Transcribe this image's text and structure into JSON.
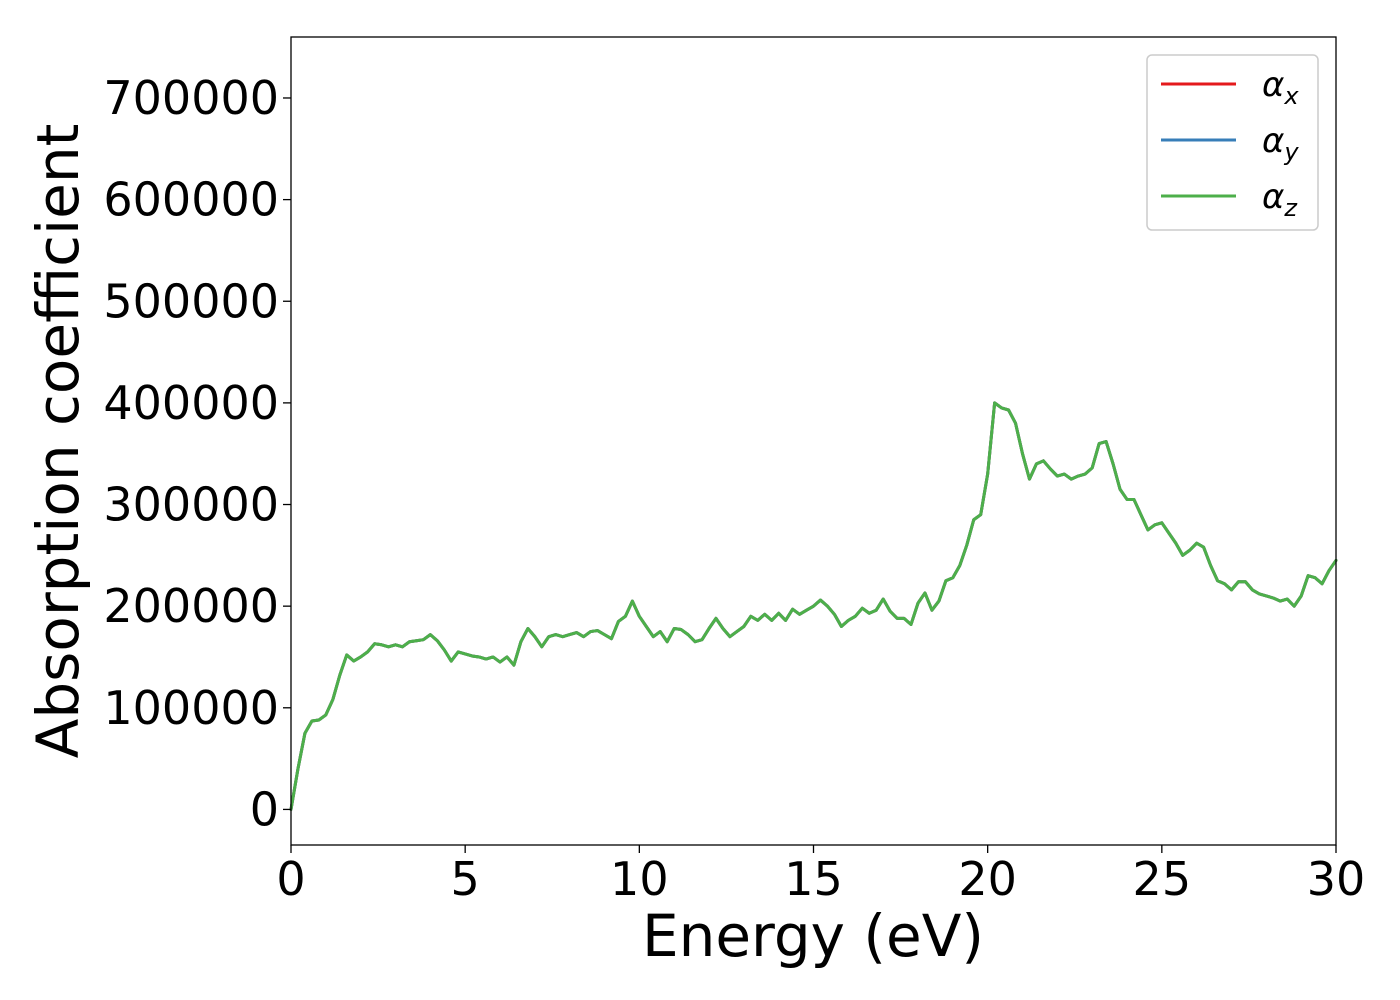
{
  "chart_data": {
    "type": "line",
    "title": "",
    "xlabel": "Energy (eV)",
    "ylabel": "Absorption coefficient",
    "xlim": [
      0,
      30
    ],
    "ylim": [
      -35000,
      760000
    ],
    "xticks": [
      0,
      5,
      10,
      15,
      20,
      25,
      30
    ],
    "xtick_labels": [
      "0",
      "5",
      "10",
      "15",
      "20",
      "25",
      "30"
    ],
    "yticks": [
      0,
      100000,
      200000,
      300000,
      400000,
      500000,
      600000,
      700000
    ],
    "ytick_labels": [
      "0",
      "100000",
      "200000",
      "300000",
      "400000",
      "500000",
      "600000",
      "700000"
    ],
    "grid": false,
    "legend_position": "top-right",
    "x": [
      0,
      0.2,
      0.4,
      0.6,
      0.8,
      1.0,
      1.2,
      1.4,
      1.6,
      1.8,
      2.0,
      2.2,
      2.4,
      2.6,
      2.8,
      3.0,
      3.2,
      3.4,
      3.6,
      3.8,
      4.0,
      4.2,
      4.4,
      4.6,
      4.8,
      5.0,
      5.2,
      5.4,
      5.6,
      5.8,
      6.0,
      6.2,
      6.4,
      6.6,
      6.8,
      7.0,
      7.2,
      7.4,
      7.6,
      7.8,
      8.0,
      8.2,
      8.4,
      8.6,
      8.8,
      9.0,
      9.2,
      9.4,
      9.6,
      9.8,
      10.0,
      10.2,
      10.4,
      10.6,
      10.8,
      11.0,
      11.2,
      11.4,
      11.6,
      11.8,
      12.0,
      12.2,
      12.4,
      12.6,
      12.8,
      13.0,
      13.2,
      13.4,
      13.6,
      13.8,
      14.0,
      14.2,
      14.4,
      14.6,
      14.8,
      15.0,
      15.2,
      15.4,
      15.6,
      15.8,
      16.0,
      16.2,
      16.4,
      16.6,
      16.8,
      17.0,
      17.2,
      17.4,
      17.6,
      17.8,
      18.0,
      18.2,
      18.4,
      18.6,
      18.8,
      19.0,
      19.2,
      19.4,
      19.6,
      19.8,
      20.0,
      20.2,
      20.4,
      20.6,
      20.8,
      21.0,
      21.2,
      21.4,
      21.6,
      21.8,
      22.0,
      22.2,
      22.4,
      22.6,
      22.8,
      23.0,
      23.2,
      23.4,
      23.6,
      23.8,
      24.0,
      24.2,
      24.4,
      24.6,
      24.8,
      25.0,
      25.2,
      25.4,
      25.6,
      25.8,
      26.0,
      26.2,
      26.4,
      26.6,
      26.8,
      27.0,
      27.2,
      27.4,
      27.6,
      27.8,
      28.0,
      28.2,
      28.4,
      28.6,
      28.8,
      29.0,
      29.2,
      29.4,
      29.6,
      29.8,
      30.0
    ],
    "series": [
      {
        "name": "α",
        "subscript": "x",
        "color": "#e41a1c",
        "values": [
          0,
          40000,
          75000,
          87000,
          88000,
          93000,
          108000,
          132000,
          152000,
          146000,
          150000,
          155000,
          163000,
          162000,
          160000,
          162000,
          160000,
          165000,
          166000,
          167000,
          172000,
          166000,
          157000,
          146000,
          155000,
          153000,
          151000,
          150000,
          148000,
          150000,
          145000,
          150000,
          142000,
          165000,
          178000,
          170000,
          160000,
          170000,
          172000,
          170000,
          172000,
          174000,
          170000,
          175000,
          176000,
          172000,
          168000,
          185000,
          190000,
          205000,
          190000,
          180000,
          170000,
          175000,
          165000,
          178000,
          177000,
          172000,
          165000,
          167000,
          178000,
          188000,
          178000,
          170000,
          175000,
          180000,
          190000,
          186000,
          192000,
          186000,
          193000,
          186000,
          197000,
          192000,
          196000,
          200000,
          206000,
          200000,
          192000,
          180000,
          186000,
          190000,
          198000,
          193000,
          196000,
          207000,
          195000,
          188000,
          188000,
          182000,
          203000,
          213000,
          196000,
          205000,
          225000,
          228000,
          240000,
          260000,
          285000,
          290000,
          330000,
          400000,
          395000,
          393000,
          380000,
          350000,
          325000,
          340000,
          343000,
          335000,
          328000,
          330000,
          325000,
          328000,
          330000,
          336000,
          360000,
          362000,
          340000,
          315000,
          305000,
          305000,
          290000,
          275000,
          280000,
          282000,
          272000,
          262000,
          250000,
          255000,
          262000,
          258000,
          240000,
          225000,
          222000,
          216000,
          224000,
          224000,
          216000,
          212000,
          210000,
          208000,
          205000,
          207000,
          200000,
          210000,
          230000,
          228000,
          222000,
          235000,
          245000
        ]
      },
      {
        "name": "α",
        "subscript": "y",
        "color": "#377eb8",
        "values": [
          0,
          40000,
          75000,
          87000,
          88000,
          93000,
          108000,
          132000,
          152000,
          146000,
          150000,
          155000,
          163000,
          162000,
          160000,
          162000,
          160000,
          165000,
          166000,
          167000,
          172000,
          166000,
          157000,
          146000,
          155000,
          153000,
          151000,
          150000,
          148000,
          150000,
          145000,
          150000,
          142000,
          165000,
          178000,
          170000,
          160000,
          170000,
          172000,
          170000,
          172000,
          174000,
          170000,
          175000,
          176000,
          172000,
          168000,
          185000,
          190000,
          205000,
          190000,
          180000,
          170000,
          175000,
          165000,
          178000,
          177000,
          172000,
          165000,
          167000,
          178000,
          188000,
          178000,
          170000,
          175000,
          180000,
          190000,
          186000,
          192000,
          186000,
          193000,
          186000,
          197000,
          192000,
          196000,
          200000,
          206000,
          200000,
          192000,
          180000,
          186000,
          190000,
          198000,
          193000,
          196000,
          207000,
          195000,
          188000,
          188000,
          182000,
          203000,
          213000,
          196000,
          205000,
          225000,
          228000,
          240000,
          260000,
          285000,
          290000,
          330000,
          400000,
          395000,
          393000,
          380000,
          350000,
          325000,
          340000,
          343000,
          335000,
          328000,
          330000,
          325000,
          328000,
          330000,
          336000,
          360000,
          362000,
          340000,
          315000,
          305000,
          305000,
          290000,
          275000,
          280000,
          282000,
          272000,
          262000,
          250000,
          255000,
          262000,
          258000,
          240000,
          225000,
          222000,
          216000,
          224000,
          224000,
          216000,
          212000,
          210000,
          208000,
          205000,
          207000,
          200000,
          210000,
          230000,
          228000,
          222000,
          235000,
          245000
        ]
      },
      {
        "name": "α",
        "subscript": "z",
        "color": "#4daf4a",
        "values": [
          0,
          40000,
          75000,
          87000,
          88000,
          93000,
          108000,
          132000,
          152000,
          146000,
          150000,
          155000,
          163000,
          162000,
          160000,
          162000,
          160000,
          165000,
          166000,
          167000,
          172000,
          166000,
          157000,
          146000,
          155000,
          153000,
          151000,
          150000,
          148000,
          150000,
          145000,
          150000,
          142000,
          165000,
          178000,
          170000,
          160000,
          170000,
          172000,
          170000,
          172000,
          174000,
          170000,
          175000,
          176000,
          172000,
          168000,
          185000,
          190000,
          205000,
          190000,
          180000,
          170000,
          175000,
          165000,
          178000,
          177000,
          172000,
          165000,
          167000,
          178000,
          188000,
          178000,
          170000,
          175000,
          180000,
          190000,
          186000,
          192000,
          186000,
          193000,
          186000,
          197000,
          192000,
          196000,
          200000,
          206000,
          200000,
          192000,
          180000,
          186000,
          190000,
          198000,
          193000,
          196000,
          207000,
          195000,
          188000,
          188000,
          182000,
          203000,
          213000,
          196000,
          205000,
          225000,
          228000,
          240000,
          260000,
          285000,
          290000,
          330000,
          400000,
          395000,
          393000,
          380000,
          350000,
          325000,
          340000,
          343000,
          335000,
          328000,
          330000,
          325000,
          328000,
          330000,
          336000,
          360000,
          362000,
          340000,
          315000,
          305000,
          305000,
          290000,
          275000,
          280000,
          282000,
          272000,
          262000,
          250000,
          255000,
          262000,
          258000,
          240000,
          225000,
          222000,
          216000,
          224000,
          224000,
          216000,
          212000,
          210000,
          208000,
          205000,
          207000,
          200000,
          210000,
          230000,
          228000,
          222000,
          235000,
          245000
        ]
      }
    ]
  }
}
